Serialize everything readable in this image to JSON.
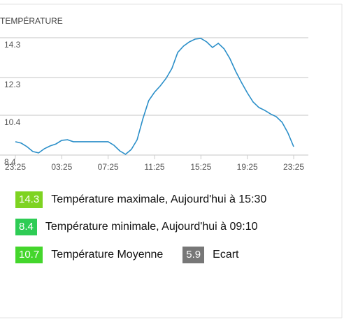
{
  "chart_data": {
    "type": "line",
    "title": "TEMPÉRATURE",
    "categories": [
      "23:25",
      null,
      null,
      null,
      null,
      null,
      null,
      null,
      "03:25",
      null,
      null,
      null,
      null,
      null,
      null,
      null,
      "07:25",
      null,
      null,
      null,
      null,
      null,
      null,
      null,
      "11:25",
      null,
      null,
      null,
      null,
      null,
      null,
      null,
      "15:25",
      null,
      null,
      null,
      null,
      null,
      null,
      null,
      "19:25",
      null,
      null,
      null,
      null,
      null,
      null,
      null,
      "23:25"
    ],
    "values": [
      9.07,
      9.0,
      8.82,
      8.58,
      8.51,
      8.72,
      8.86,
      8.96,
      9.14,
      9.17,
      9.07,
      9.07,
      9.07,
      9.07,
      9.07,
      9.07,
      9.07,
      8.89,
      8.61,
      8.44,
      8.68,
      9.17,
      10.23,
      11.14,
      11.56,
      11.88,
      12.26,
      12.76,
      13.56,
      13.88,
      14.09,
      14.23,
      14.27,
      14.09,
      13.81,
      14.02,
      13.74,
      13.25,
      12.61,
      12.05,
      11.53,
      11.07,
      10.79,
      10.65,
      10.47,
      10.33,
      10.05,
      9.52,
      8.82
    ],
    "color": "#2b8fc9",
    "ylim": [
      8.4,
      14.3
    ],
    "yticks": [
      8.4,
      10.4,
      12.3,
      14.3
    ],
    "grid": true
  },
  "stats": [
    {
      "value": 14.3,
      "label": "Température maximale, Aujourd'hui à 15:30",
      "color": "#7ed321"
    },
    {
      "value": 8.4,
      "label": "Température minimale, Aujourd'hui à 09:10",
      "color": "#2ecc55"
    },
    {
      "value": 10.7,
      "label": "Température Moyenne",
      "color": "#44d62c"
    },
    {
      "value": 5.9,
      "label": "Ecart",
      "color": "#777777"
    }
  ]
}
